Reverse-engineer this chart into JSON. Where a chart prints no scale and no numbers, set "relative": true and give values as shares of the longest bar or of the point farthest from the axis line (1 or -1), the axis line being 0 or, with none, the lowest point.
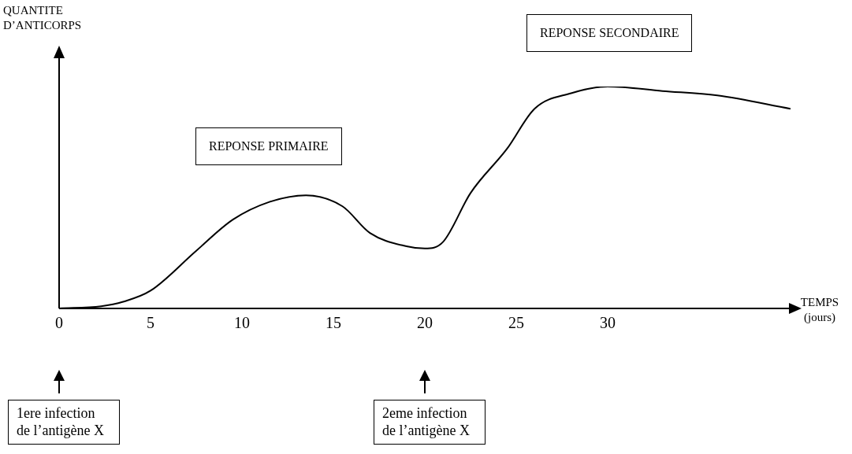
{
  "chart_data": {
    "type": "line",
    "relative": true,
    "xlabel": "TEMPS (jours)",
    "ylabel": "QUANTITE D’ANTICORPS",
    "color": "#000000",
    "marker": "none",
    "grid": false,
    "legend": false,
    "tick_labels": "x",
    "x": [
      0,
      2.3,
      3.5,
      5,
      7.5,
      9.5,
      11.5,
      13.5,
      15.5,
      17,
      19,
      20,
      21,
      22.5,
      24.5,
      26,
      28,
      30,
      33,
      36,
      40
    ],
    "values": [
      0,
      0.01,
      0.03,
      0.08,
      0.26,
      0.4,
      0.48,
      0.51,
      0.46,
      0.34,
      0.28,
      0.27,
      0.3,
      0.52,
      0.72,
      0.9,
      0.97,
      1,
      0.98,
      0.96,
      0.9
    ],
    "xlim": [
      0,
      40
    ],
    "xticks": [
      0,
      5,
      10,
      15,
      20,
      25,
      30
    ],
    "annotations": [
      "REPONSE PRIMAIRE",
      "REPONSE SECONDAIRE",
      "1ere infection de l’antigène X",
      "2eme infection de l’antigène X"
    ]
  }
}
